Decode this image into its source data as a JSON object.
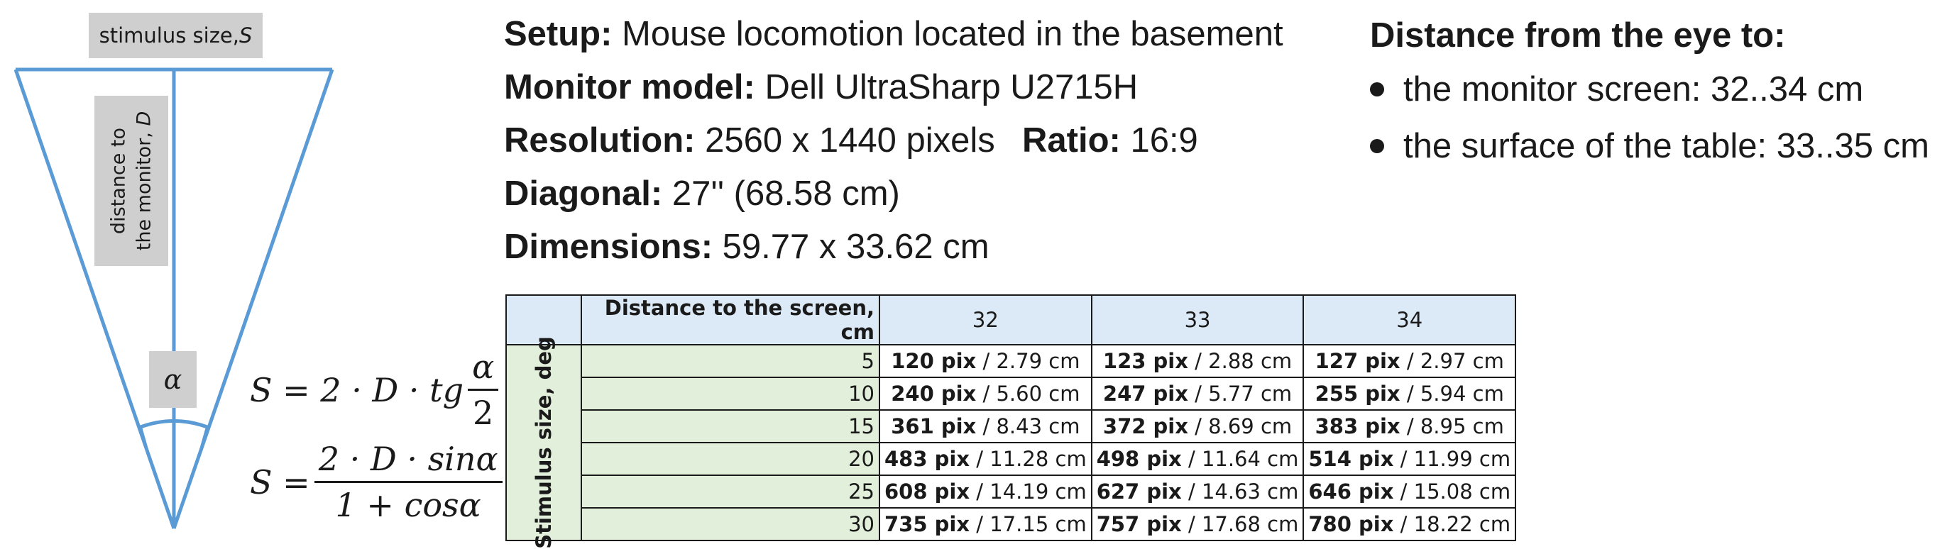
{
  "diagram": {
    "stimulus_label": "stimulus size, ",
    "stimulus_var": "S",
    "distance_label_line1": "distance to",
    "distance_label_line2": "the monitor, ",
    "distance_var": "D",
    "angle_label": "α",
    "line_color": "#5b9bd5"
  },
  "formulas": {
    "f1_lhs": "S = 2 · D · tg",
    "f1_num": "α",
    "f1_den": "2",
    "f2_lhs": "S =",
    "f2_num": "2 · D · sinα",
    "f2_den": "1 + cosα"
  },
  "info": {
    "setup_label": "Setup:",
    "setup_value": " Mouse locomotion located in the basement",
    "monitor_label": "Monitor model:",
    "monitor_value": " Dell UltraSharp U2715H",
    "resolution_label": "Resolution:",
    "resolution_value": " 2560 x 1440 pixels",
    "ratio_label": "Ratio:",
    "ratio_value": " 16:9",
    "diagonal_label": "Diagonal:",
    "diagonal_value": " 27'' (68.58 cm)",
    "dimensions_label": "Dimensions:",
    "dimensions_value": " 59.77 x 33.62 cm"
  },
  "distances": {
    "heading": "Distance from the eye to:",
    "item1": "the monitor screen: 32..34 cm",
    "item2": "the surface of the table: 33..35 cm"
  },
  "table": {
    "header_label": "Distance to the screen, cm",
    "row_header_label": "Stimulus size, deg",
    "columns": [
      "32",
      "33",
      "34"
    ],
    "rows": [
      {
        "deg": "5",
        "cells": [
          [
            "120 pix",
            " / 2.79 cm"
          ],
          [
            "123 pix",
            " / 2.88 cm"
          ],
          [
            "127 pix",
            " / 2.97 cm"
          ]
        ]
      },
      {
        "deg": "10",
        "cells": [
          [
            "240 pix",
            " / 5.60 cm"
          ],
          [
            "247 pix",
            " / 5.77 cm"
          ],
          [
            "255 pix",
            " / 5.94 cm"
          ]
        ]
      },
      {
        "deg": "15",
        "cells": [
          [
            "361 pix",
            " / 8.43 cm"
          ],
          [
            "372 pix",
            " / 8.69 cm"
          ],
          [
            "383 pix",
            " / 8.95 cm"
          ]
        ]
      },
      {
        "deg": "20",
        "cells": [
          [
            "483 pix",
            " / 11.28 cm"
          ],
          [
            "498 pix",
            " / 11.64 cm"
          ],
          [
            "514 pix",
            " / 11.99 cm"
          ]
        ]
      },
      {
        "deg": "25",
        "cells": [
          [
            "608 pix",
            " / 14.19 cm"
          ],
          [
            "627 pix",
            " / 14.63 cm"
          ],
          [
            "646 pix",
            " / 15.08 cm"
          ]
        ]
      },
      {
        "deg": "30",
        "cells": [
          [
            "735 pix",
            " / 17.15 cm"
          ],
          [
            "757 pix",
            " / 17.68 cm"
          ],
          [
            "780 pix",
            " / 18.22 cm"
          ]
        ]
      }
    ]
  }
}
